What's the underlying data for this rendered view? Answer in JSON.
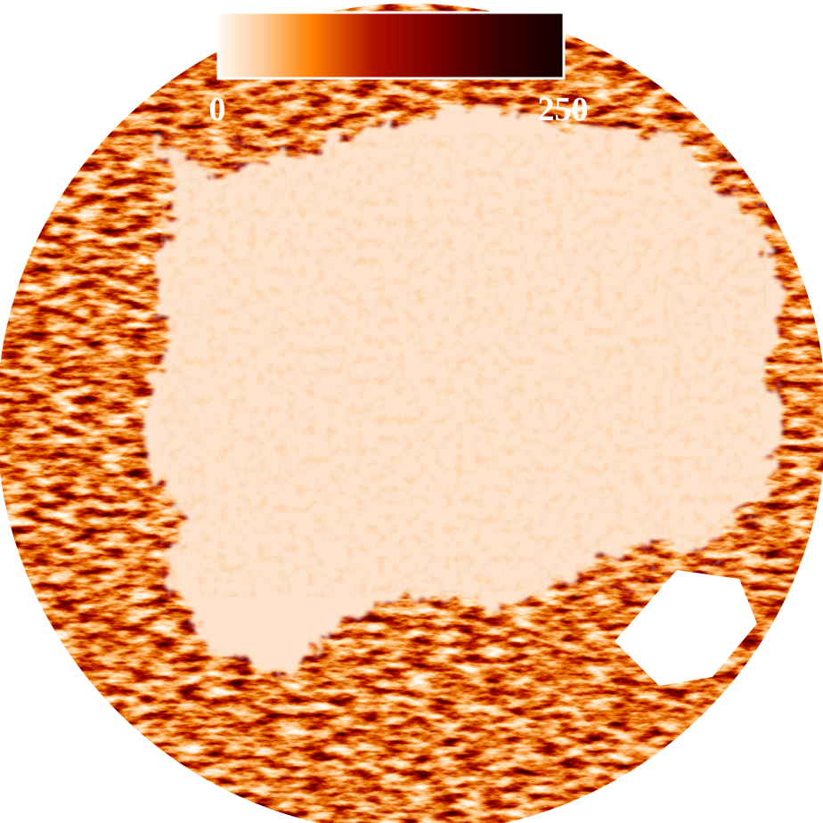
{
  "colorbar": {
    "min_label": "0",
    "max_label": "250"
  }
}
